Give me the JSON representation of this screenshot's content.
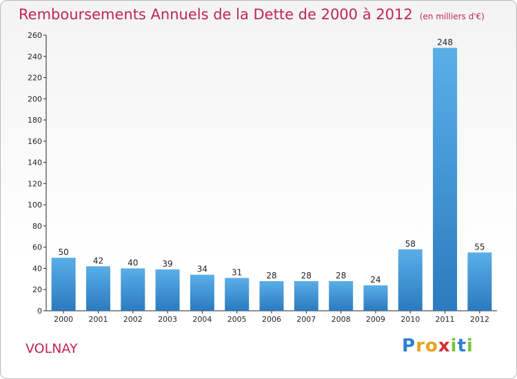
{
  "title": "Remboursements Annuels de la Dette de 2000 à 2012",
  "unit": "(en milliers d'€)",
  "location": "VOLNAY",
  "logo": {
    "text": "Proxiti",
    "colors": [
      "#2b7fd4",
      "#e8a21c",
      "#e8a21c",
      "#d92f2f",
      "#7cc23a",
      "#2b7fd4",
      "#7cc23a"
    ]
  },
  "colors": {
    "title": "#c0235c",
    "bar_light": "#5aaee8",
    "bar_dark": "#2a7bbf",
    "axis": "#222222"
  },
  "chart_data": {
    "type": "bar",
    "title": "Remboursements Annuels de la Dette de 2000 à 2012",
    "xlabel": "",
    "ylabel": "",
    "categories": [
      "2000",
      "2001",
      "2002",
      "2003",
      "2004",
      "2005",
      "2006",
      "2007",
      "2008",
      "2009",
      "2010",
      "2011",
      "2012"
    ],
    "values": [
      50,
      42,
      40,
      39,
      34,
      31,
      28,
      28,
      28,
      24,
      58,
      248,
      55
    ],
    "ylim": [
      0,
      260
    ],
    "yticks": [
      0,
      20,
      40,
      60,
      80,
      100,
      120,
      140,
      160,
      180,
      200,
      220,
      240,
      260
    ],
    "grid": false,
    "legend": "none"
  }
}
